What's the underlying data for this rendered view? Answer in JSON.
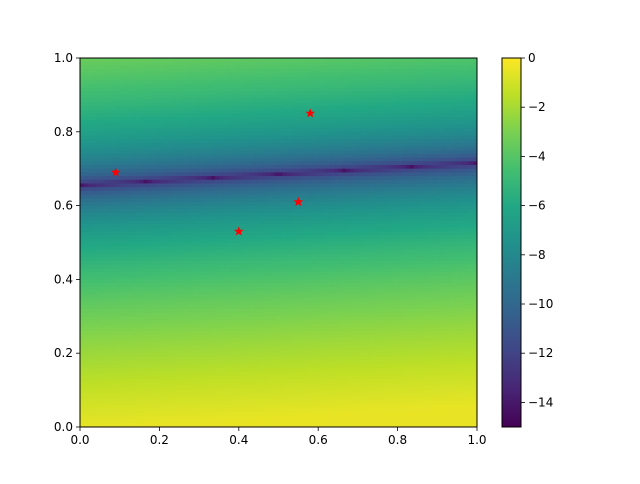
{
  "chart_data": {
    "type": "heatmap",
    "title": "",
    "xlabel": "",
    "ylabel": "",
    "xlim": [
      0,
      1
    ],
    "ylim": [
      0,
      1
    ],
    "colormap": "viridis",
    "grid": false,
    "x_ticks": [
      "0.0",
      "0.2",
      "0.4",
      "0.6",
      "0.8",
      "1.0"
    ],
    "y_ticks": [
      "0.0",
      "0.2",
      "0.4",
      "0.6",
      "0.8",
      "1.0"
    ],
    "colorbar": {
      "vmin": -15,
      "vmax": 0,
      "ticks": [
        0,
        -2,
        -4,
        -6,
        -8,
        -10,
        -12,
        -14
      ],
      "tick_labels": [
        "0",
        "−2",
        "−4",
        "−6",
        "−8",
        "−10",
        "−12",
        "−14"
      ]
    },
    "field": {
      "description_line": {
        "intercept": 0.655,
        "slope": 0.06
      },
      "min_value": -15,
      "max_value": 0
    },
    "scatter": {
      "marker": "star",
      "color": "#ff0000",
      "points": [
        {
          "x": 0.09,
          "y": 0.69
        },
        {
          "x": 0.4,
          "y": 0.53
        },
        {
          "x": 0.55,
          "y": 0.61
        },
        {
          "x": 0.58,
          "y": 0.85
        }
      ]
    }
  }
}
